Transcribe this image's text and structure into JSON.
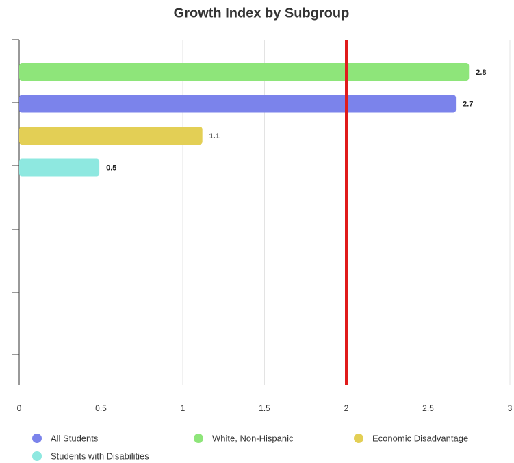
{
  "chart_data": {
    "type": "bar",
    "orientation": "horizontal",
    "title": "Growth Index by Subgroup",
    "series": [
      {
        "name": "All Students",
        "color": "#7b83eb",
        "values": [
          2.67
        ],
        "value_labels": [
          "2.7"
        ]
      },
      {
        "name": "White, Non-Hispanic",
        "color": "#8ee57a",
        "values": [
          2.75
        ],
        "value_labels": [
          "2.8"
        ]
      },
      {
        "name": "Economic Disadvantage",
        "color": "#e3cf55",
        "values": [
          1.12
        ],
        "value_labels": [
          "1.1"
        ]
      },
      {
        "name": "Students with Disabilities",
        "color": "#8ee8e0",
        "values": [
          0.49
        ],
        "value_labels": [
          "0.5"
        ]
      }
    ],
    "xlim": [
      0,
      3
    ],
    "xticks": [
      0,
      0.5,
      1,
      1.5,
      2,
      2.5,
      3
    ],
    "grid": true,
    "reference_line": {
      "value": 2,
      "color": "#e01b1b"
    },
    "legend": "bottom"
  }
}
